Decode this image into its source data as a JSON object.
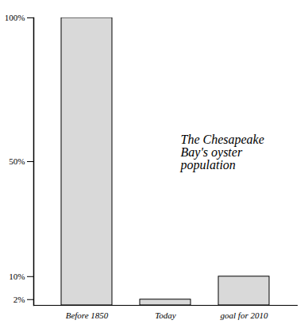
{
  "chart_data": {
    "type": "bar",
    "title": "The Chesapeake Bay's oyster population",
    "categories": [
      "Before 1850",
      "Today",
      "goal for 2010"
    ],
    "values": [
      100,
      2,
      10
    ],
    "color": "#d9d9d9",
    "ylim": [
      0,
      100
    ],
    "yticks": [
      {
        "value": 2,
        "label": "2%"
      },
      {
        "value": 10,
        "label": "10%"
      },
      {
        "value": 50,
        "label": "50%"
      },
      {
        "value": 100,
        "label": "100%"
      }
    ]
  }
}
